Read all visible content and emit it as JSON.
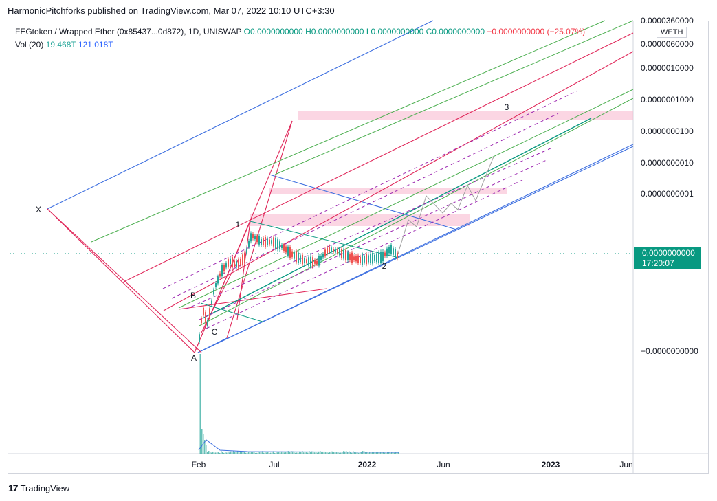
{
  "header": {
    "publisher_line": "HarmonicPitchforks published on TradingView.com, Mar 07, 2022 10:10 UTC+3:30"
  },
  "legend": {
    "symbol": "FEGtoken / Wrapped Ether (0x85437...0d872), 1D, UNISWAP",
    "open": "O0.0000000000",
    "high": "H0.0000000000",
    "low": "L0.0000000000",
    "close": "C0.0000000000",
    "change": "−0.0000000000 (−25.07%)",
    "volume_label": "Vol (20)",
    "volume_value": "19.468T",
    "volume_ma": "121.018T"
  },
  "quote_badge": "WETH",
  "price_badge": {
    "price": "0.0000000000",
    "countdown": "17:20:07"
  },
  "chart_data": {
    "type": "line",
    "y_scale": "log",
    "y_tick_labels": [
      "0.0000360000",
      "0.0000060000",
      "0.0000010000",
      "0.0000001000",
      "0.0000000100",
      "0.0000000010",
      "0.0000000001",
      "−0.0000000000"
    ],
    "x_tick_labels": [
      "Feb",
      "Jul",
      "2022",
      "Jun",
      "2023",
      "Jun"
    ],
    "pattern_points": [
      "X",
      "A",
      "B",
      "C",
      "1",
      "2",
      "3"
    ],
    "colors": {
      "blue": "#3d6fe0",
      "red": "#e0285a",
      "green": "#4caf50",
      "dark_green": "#089981",
      "purple": "#9c27b0",
      "pink_zone": "#f8bbd0",
      "candle_up": "#26a69a",
      "candle_down": "#ef5350"
    }
  },
  "footer": {
    "brand": "TradingView"
  }
}
